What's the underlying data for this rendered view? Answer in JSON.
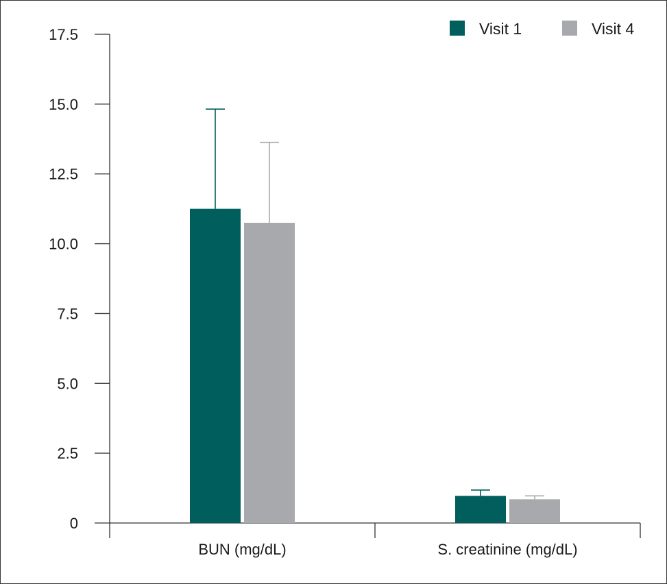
{
  "chart_data": {
    "type": "bar",
    "title": "",
    "xlabel": "",
    "ylabel": "",
    "categories": [
      "BUN (mg/dL)",
      "S. creatinine (mg/dL)"
    ],
    "series": [
      {
        "name": "Visit 1",
        "color": "#005f5c",
        "values": [
          11.25,
          0.97
        ],
        "errors": [
          3.57,
          0.21
        ]
      },
      {
        "name": "Visit 4",
        "color": "#a7a9ac",
        "values": [
          10.75,
          0.85
        ],
        "errors": [
          2.88,
          0.12
        ]
      }
    ],
    "ylim": [
      0,
      17.5
    ],
    "yticks": [
      0,
      2.5,
      5.0,
      7.5,
      10.0,
      12.5,
      15.0,
      17.5
    ],
    "ytick_labels": [
      "0",
      "2.5",
      "5.0",
      "7.5",
      "10.0",
      "12.5",
      "15.0",
      "17.5"
    ],
    "grid": false,
    "legend_position": "top-right"
  }
}
